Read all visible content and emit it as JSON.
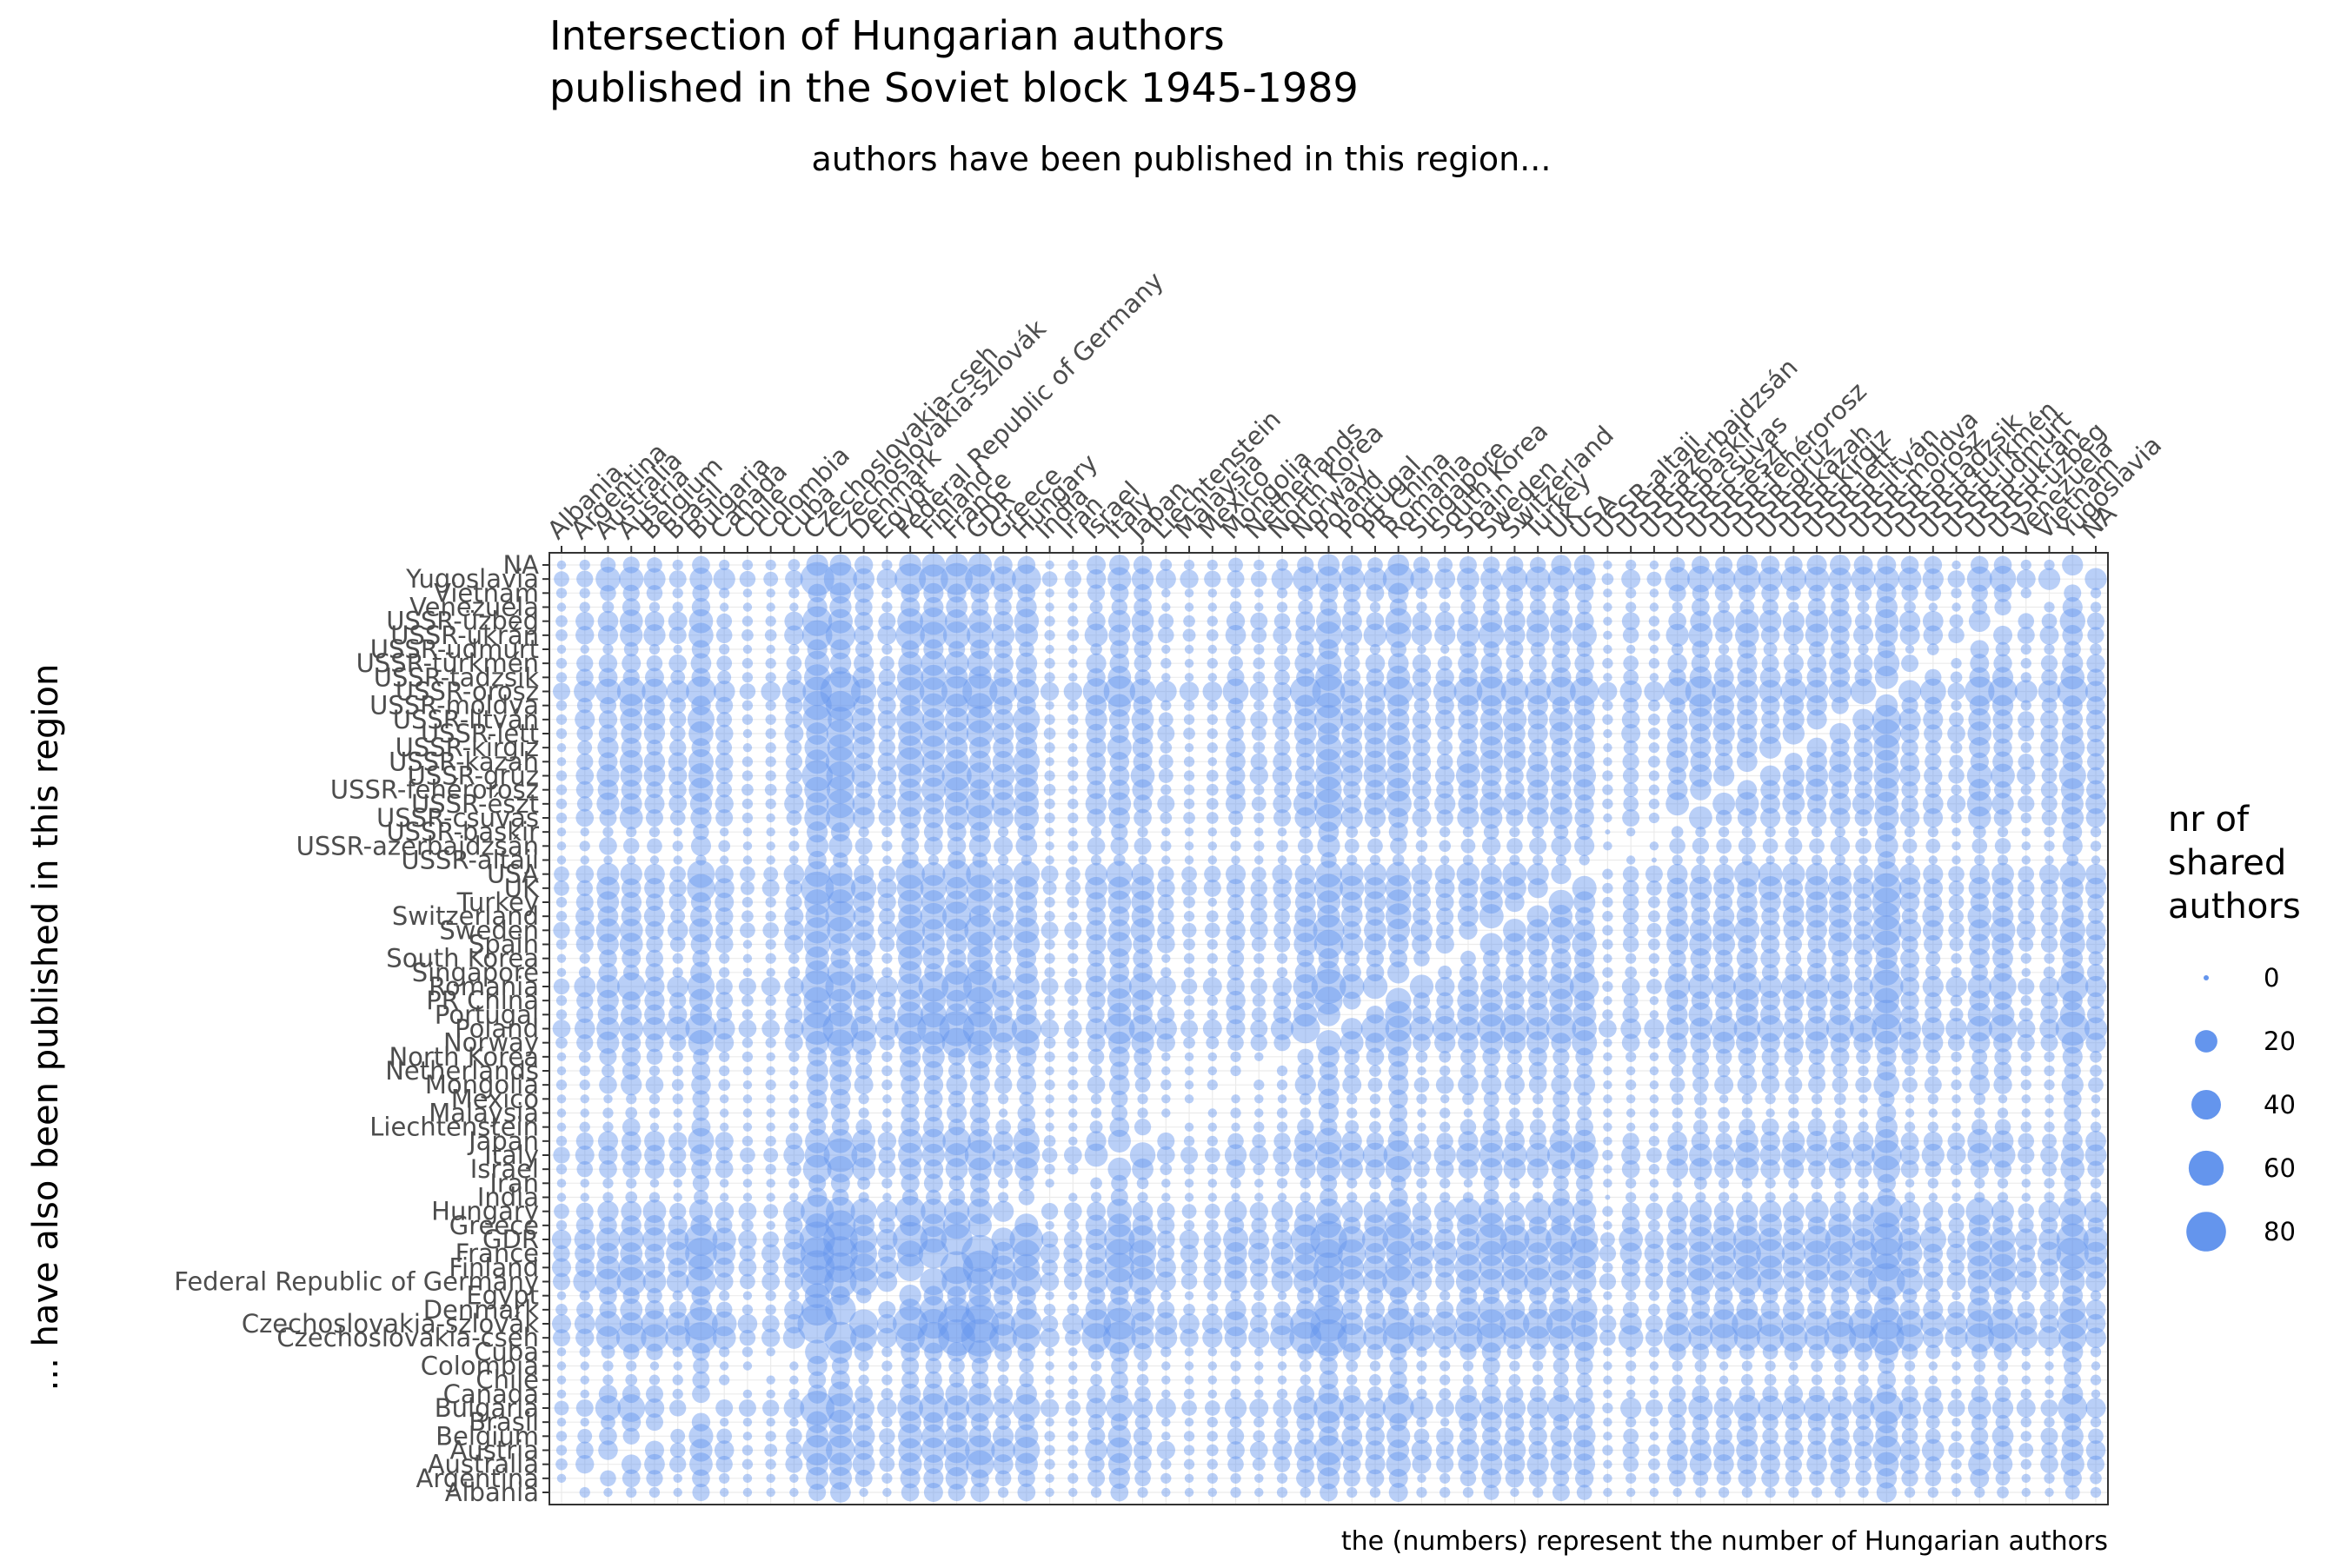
{
  "chart_data": {
    "type": "scatter",
    "title_lines": [
      "Intersection of Hungarian authors",
      "published in the Soviet block 1945-1989"
    ],
    "subtitle": "authors have been published in this region...",
    "xlabel": "",
    "ylabel": "... have also been published in this region",
    "caption": "the (numbers) represent the number of Hungarian authors",
    "marker_color": "#6495ED",
    "grid": true,
    "legend": {
      "title_lines": [
        "nr of",
        "shared",
        "authors"
      ],
      "placement": "right",
      "entries": [
        0,
        20,
        40,
        60,
        80
      ]
    },
    "size_range": [
      0,
      90
    ],
    "categories": [
      "Albania",
      "Argentina",
      "Australia",
      "Austria",
      "Belgium",
      "Brasil",
      "Bulgaria",
      "Canada",
      "Chile",
      "Colombia",
      "Cuba",
      "Czechoslovakia-cseh",
      "Czechoslovakia-szlovák",
      "Denmark",
      "Egypt",
      "Federal Republic of Germany",
      "Finland",
      "France",
      "GDR",
      "Greece",
      "Hungary",
      "India",
      "Iran",
      "Israel",
      "Italy",
      "Japan",
      "Liechtenstein",
      "Malaysia",
      "Mexico",
      "Mongolia",
      "Netherlands",
      "North Korea",
      "Norway",
      "Poland",
      "Portugal",
      "PR China",
      "Romania",
      "Singapore",
      "South Korea",
      "Spain",
      "Sweden",
      "Switzerland",
      "Turkey",
      "UK",
      "USA",
      "USSR-altaji",
      "USSR-azerbajdzsán",
      "USSR-baskir",
      "USSR-csuvas",
      "USSR-észt",
      "USSR-fehérorosz",
      "USSR-grúz",
      "USSR-kazah",
      "USSR-kirgiz",
      "USSR-lett",
      "USSR-litván",
      "USSR-moldva",
      "USSR-orosz",
      "USSR-tadzsik",
      "USSR-türkmén",
      "USSR-udmurt",
      "USSR-ukrán",
      "USSR-üzbég",
      "Venezuela",
      "Vietnam",
      "Yugoslavia",
      "NA"
    ],
    "column_weights": [
      0.2,
      0.3,
      0.45,
      0.55,
      0.4,
      0.3,
      0.7,
      0.3,
      0.2,
      0.2,
      0.3,
      1.0,
      1.0,
      0.55,
      0.3,
      0.85,
      0.75,
      0.85,
      0.9,
      0.5,
      0.7,
      0.2,
      0.2,
      0.45,
      0.65,
      0.5,
      0.25,
      0.2,
      0.2,
      0.35,
      0.25,
      0.3,
      0.55,
      0.9,
      0.5,
      0.45,
      0.75,
      0.35,
      0.35,
      0.5,
      0.6,
      0.5,
      0.5,
      0.6,
      0.6,
      0.15,
      0.3,
      0.2,
      0.45,
      0.55,
      0.45,
      0.55,
      0.5,
      0.45,
      0.5,
      0.55,
      0.45,
      0.95,
      0.4,
      0.4,
      0.25,
      0.55,
      0.5,
      0.25,
      0.3,
      0.7,
      0.35
    ]
  }
}
